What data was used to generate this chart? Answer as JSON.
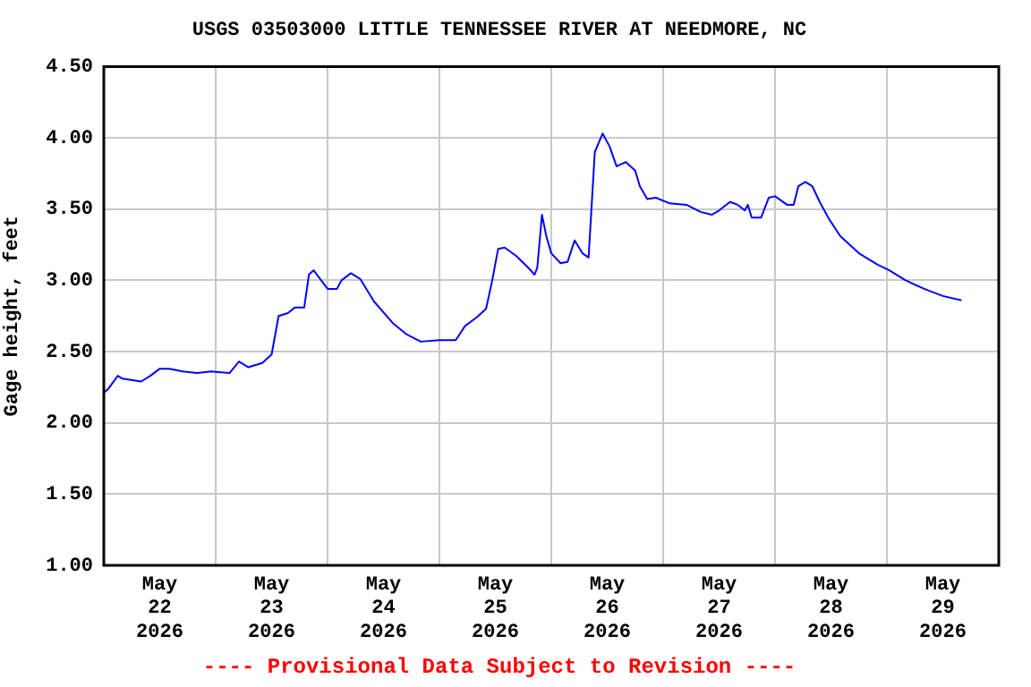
{
  "chart_data": {
    "type": "line",
    "title": "USGS 03503000 LITTLE TENNESSEE RIVER AT NEEDMORE, NC",
    "ylabel": "Gage height, feet",
    "annotations": [
      "---- Provisional Data Subject to Revision ----"
    ],
    "x": [
      "2026-05-22T00:00",
      "2026-05-22T01:00",
      "2026-05-22T03:00",
      "2026-05-22T04:00",
      "2026-05-22T08:00",
      "2026-05-22T10:00",
      "2026-05-22T12:00",
      "2026-05-22T14:00",
      "2026-05-22T17:00",
      "2026-05-22T20:00",
      "2026-05-22T23:00",
      "2026-05-23T03:00",
      "2026-05-23T05:00",
      "2026-05-23T07:00",
      "2026-05-23T10:00",
      "2026-05-23T12:00",
      "2026-05-23T13:30",
      "2026-05-23T15:30",
      "2026-05-23T17:00",
      "2026-05-23T19:00",
      "2026-05-23T20:00",
      "2026-05-23T21:00",
      "2026-05-24T00:00",
      "2026-05-24T02:00",
      "2026-05-24T03:00",
      "2026-05-24T05:00",
      "2026-05-24T07:00",
      "2026-05-24T10:00",
      "2026-05-24T14:00",
      "2026-05-24T17:00",
      "2026-05-24T20:00",
      "2026-05-25T00:00",
      "2026-05-25T03:30",
      "2026-05-25T05:30",
      "2026-05-25T08:00",
      "2026-05-25T10:00",
      "2026-05-25T11:20",
      "2026-05-25T12:35",
      "2026-05-25T14:00",
      "2026-05-25T16:30",
      "2026-05-25T19:00",
      "2026-05-25T20:25",
      "2026-05-25T21:00",
      "2026-05-25T22:00",
      "2026-05-25T23:00",
      "2026-05-26T00:00",
      "2026-05-26T02:00",
      "2026-05-26T03:30",
      "2026-05-26T05:00",
      "2026-05-26T06:40",
      "2026-05-26T08:00",
      "2026-05-26T09:20",
      "2026-05-26T11:00",
      "2026-05-26T12:30",
      "2026-05-26T14:00",
      "2026-05-26T16:00",
      "2026-05-26T18:00",
      "2026-05-26T19:00",
      "2026-05-26T20:35",
      "2026-05-26T22:25",
      "2026-05-27T01:25",
      "2026-05-27T05:00",
      "2026-05-27T08:00",
      "2026-05-27T10:25",
      "2026-05-27T12:00",
      "2026-05-27T14:20",
      "2026-05-27T16:00",
      "2026-05-27T17:30",
      "2026-05-27T18:10",
      "2026-05-27T19:00",
      "2026-05-27T21:00",
      "2026-05-27T22:40",
      "2026-05-28T00:00",
      "2026-05-28T02:35",
      "2026-05-28T04:00",
      "2026-05-28T05:00",
      "2026-05-28T06:30",
      "2026-05-28T08:00",
      "2026-05-28T09:35",
      "2026-05-28T11:35",
      "2026-05-28T14:00",
      "2026-05-28T18:00",
      "2026-05-28T22:00",
      "2026-05-29T00:30",
      "2026-05-29T04:00",
      "2026-05-29T08:00",
      "2026-05-29T12:00",
      "2026-05-29T16:00"
    ],
    "series": [
      {
        "color": "#0000ff",
        "values": [
          2.21,
          2.24,
          2.33,
          2.31,
          2.29,
          2.33,
          2.38,
          2.38,
          2.36,
          2.35,
          2.36,
          2.35,
          2.43,
          2.39,
          2.42,
          2.48,
          2.75,
          2.77,
          2.81,
          2.81,
          3.04,
          3.07,
          2.94,
          2.94,
          3.0,
          3.05,
          3.01,
          2.85,
          2.7,
          2.62,
          2.57,
          2.58,
          2.58,
          2.68,
          2.74,
          2.8,
          3.0,
          3.22,
          3.23,
          3.17,
          3.09,
          3.04,
          3.09,
          3.46,
          3.3,
          3.19,
          3.12,
          3.13,
          3.28,
          3.19,
          3.16,
          3.9,
          4.03,
          3.94,
          3.8,
          3.83,
          3.77,
          3.66,
          3.57,
          3.58,
          3.54,
          3.53,
          3.48,
          3.46,
          3.49,
          3.55,
          3.53,
          3.49,
          3.53,
          3.44,
          3.44,
          3.58,
          3.59,
          3.53,
          3.53,
          3.66,
          3.69,
          3.66,
          3.55,
          3.43,
          3.31,
          3.19,
          3.11,
          3.07,
          3.0,
          2.94,
          2.89,
          2.86
        ]
      }
    ],
    "xlim": [
      "2026-05-22",
      "2026-05-30"
    ],
    "xticks": [
      {
        "value": "2026-05-22T12:00",
        "label": "May 22 2026"
      },
      {
        "value": "2026-05-23",
        "label": null
      },
      {
        "value": "2026-05-23T12:00",
        "label": "May 23 2026"
      },
      {
        "value": "2026-05-24",
        "label": null
      },
      {
        "value": "2026-05-24T12:00",
        "label": "May 24 2026"
      },
      {
        "value": "2026-05-25",
        "label": null
      },
      {
        "value": "2026-05-25T12:00",
        "label": "May 25 2026"
      },
      {
        "value": "2026-05-26",
        "label": null
      },
      {
        "value": "2026-05-26T12:00",
        "label": "May 26 2026"
      },
      {
        "value": "2026-05-27",
        "label": null
      },
      {
        "value": "2026-05-27T12:00",
        "label": "May 27 2026"
      },
      {
        "value": "2026-05-28",
        "label": null
      },
      {
        "value": "2026-05-28T12:00",
        "label": "May 28 2026"
      },
      {
        "value": "2026-05-29",
        "label": null
      },
      {
        "value": "2026-05-29T12:00",
        "label": "May 29 2026"
      }
    ],
    "ylim": [
      1.0,
      4.5
    ],
    "yticks": [
      {
        "value": 1.0,
        "label": "1.00"
      },
      {
        "value": 1.5,
        "label": "1.50"
      },
      {
        "value": 2.0,
        "label": "2.00"
      },
      {
        "value": 2.5,
        "label": "2.50"
      },
      {
        "value": 3.0,
        "label": "3.00"
      },
      {
        "value": 3.5,
        "label": "3.50"
      },
      {
        "value": 4.0,
        "label": "4.00"
      },
      {
        "value": 4.5,
        "label": "4.50"
      }
    ],
    "grid": true,
    "legend": false,
    "marker": "none",
    "line_style": "solid"
  }
}
